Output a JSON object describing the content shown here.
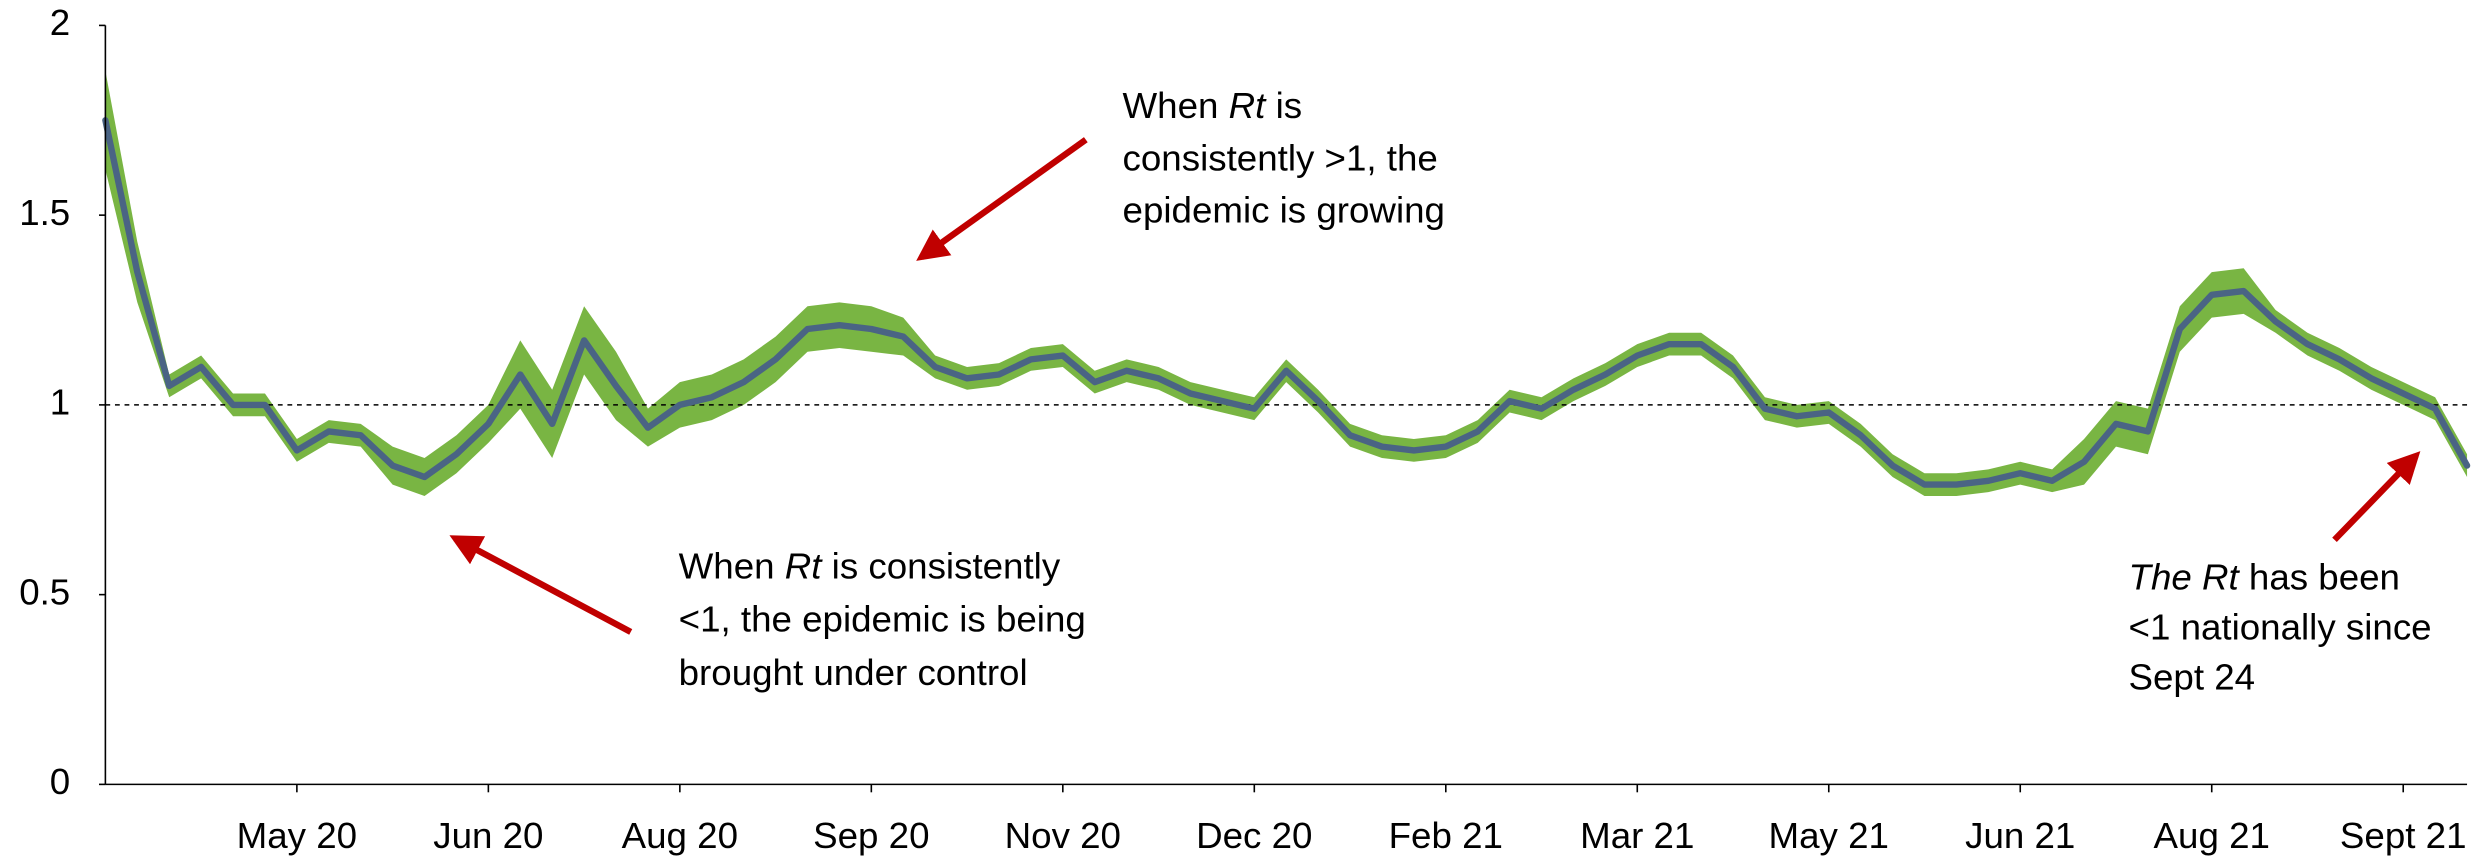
{
  "chart_data": {
    "type": "line",
    "categories": [
      null,
      null,
      null,
      null,
      null,
      null,
      "May 20",
      null,
      null,
      null,
      null,
      null,
      "Jun 20",
      null,
      null,
      null,
      null,
      null,
      "Aug 20",
      null,
      null,
      null,
      null,
      null,
      "Sep 20",
      null,
      null,
      null,
      null,
      null,
      "Nov 20",
      null,
      null,
      null,
      null,
      null,
      "Dec 20",
      null,
      null,
      null,
      null,
      null,
      "Feb 21",
      null,
      null,
      null,
      null,
      null,
      "Mar 21",
      null,
      null,
      null,
      null,
      null,
      "May 21",
      null,
      null,
      null,
      null,
      null,
      "Jun 21",
      null,
      null,
      null,
      null,
      null,
      "Aug 21",
      null,
      null,
      null,
      null,
      null,
      "Sept 21",
      null,
      null
    ],
    "values": [
      1.75,
      1.35,
      1.05,
      1.1,
      1.0,
      1.0,
      0.88,
      0.93,
      0.92,
      0.84,
      0.81,
      0.87,
      0.95,
      1.08,
      0.95,
      1.17,
      1.05,
      0.94,
      1.0,
      1.02,
      1.06,
      1.12,
      1.2,
      1.21,
      1.2,
      1.18,
      1.1,
      1.07,
      1.08,
      1.12,
      1.13,
      1.06,
      1.09,
      1.07,
      1.03,
      1.01,
      0.99,
      1.09,
      1.01,
      0.92,
      0.89,
      0.88,
      0.89,
      0.93,
      1.01,
      0.99,
      1.04,
      1.08,
      1.13,
      1.16,
      1.16,
      1.1,
      0.99,
      0.97,
      0.98,
      0.92,
      0.84,
      0.79,
      0.79,
      0.8,
      0.82,
      0.8,
      0.85,
      0.95,
      0.93,
      1.2,
      1.29,
      1.3,
      1.22,
      1.16,
      1.12,
      1.07,
      1.03,
      0.99,
      0.84
    ],
    "color": "#4a6484",
    "band": {
      "color": "#79b543",
      "upper": [
        1.88,
        1.43,
        1.08,
        1.13,
        1.03,
        1.03,
        0.91,
        0.96,
        0.95,
        0.89,
        0.86,
        0.92,
        1.0,
        1.17,
        1.04,
        1.26,
        1.14,
        0.99,
        1.06,
        1.08,
        1.12,
        1.18,
        1.26,
        1.27,
        1.26,
        1.23,
        1.13,
        1.1,
        1.11,
        1.15,
        1.16,
        1.09,
        1.12,
        1.1,
        1.06,
        1.04,
        1.02,
        1.12,
        1.04,
        0.95,
        0.92,
        0.91,
        0.92,
        0.96,
        1.04,
        1.02,
        1.07,
        1.11,
        1.16,
        1.19,
        1.19,
        1.13,
        1.02,
        1.0,
        1.01,
        0.95,
        0.87,
        0.82,
        0.82,
        0.83,
        0.85,
        0.83,
        0.91,
        1.01,
        0.99,
        1.26,
        1.35,
        1.36,
        1.25,
        1.19,
        1.15,
        1.1,
        1.06,
        1.02,
        0.87
      ],
      "lower": [
        1.62,
        1.27,
        1.02,
        1.07,
        0.97,
        0.97,
        0.85,
        0.9,
        0.89,
        0.79,
        0.76,
        0.82,
        0.9,
        0.99,
        0.86,
        1.08,
        0.96,
        0.89,
        0.94,
        0.96,
        1.0,
        1.06,
        1.14,
        1.15,
        1.14,
        1.13,
        1.07,
        1.04,
        1.05,
        1.09,
        1.1,
        1.03,
        1.06,
        1.04,
        1.0,
        0.98,
        0.96,
        1.06,
        0.98,
        0.89,
        0.86,
        0.85,
        0.86,
        0.9,
        0.98,
        0.96,
        1.01,
        1.05,
        1.1,
        1.13,
        1.13,
        1.07,
        0.96,
        0.94,
        0.95,
        0.89,
        0.81,
        0.76,
        0.76,
        0.77,
        0.79,
        0.77,
        0.79,
        0.89,
        0.87,
        1.14,
        1.23,
        1.24,
        1.19,
        1.13,
        1.09,
        1.04,
        1.0,
        0.96,
        0.81
      ]
    },
    "reference_line": 1,
    "ylim": [
      0,
      2
    ],
    "yticks": [
      0,
      0.5,
      1,
      1.5,
      2
    ],
    "annotations": [
      {
        "lines": [
          [
            {
              "text": "When "
            },
            {
              "text": "Rt",
              "italic": true
            },
            {
              "text": " is"
            }
          ],
          [
            {
              "text": "consistently >1, the"
            }
          ],
          [
            {
              "text": "epidemic is growing"
            }
          ]
        ]
      },
      {
        "lines": [
          [
            {
              "text": "When "
            },
            {
              "text": "Rt",
              "italic": true
            },
            {
              "text": " is consistently"
            }
          ],
          [
            {
              "text": "<1, the epidemic is being"
            }
          ],
          [
            {
              "text": "brought under control"
            }
          ]
        ]
      },
      {
        "lines": [
          [
            {
              "text": "The Rt",
              "italic": true
            },
            {
              "text": " has been"
            }
          ],
          [
            {
              "text": "<1 nationally since"
            }
          ],
          [
            {
              "text": "Sept 24"
            }
          ]
        ]
      }
    ]
  }
}
